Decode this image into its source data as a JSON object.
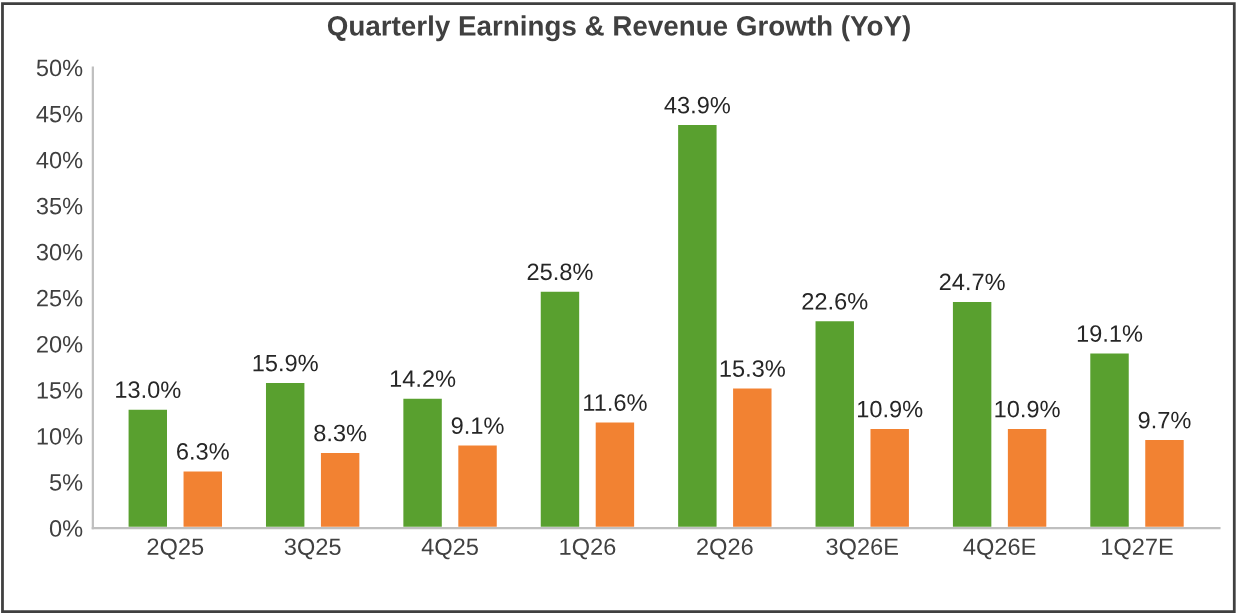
{
  "chart_data": {
    "type": "bar",
    "title": "Quarterly Earnings & Revenue Growth (YoY)",
    "categories": [
      "2Q25",
      "3Q25",
      "4Q25",
      "1Q26",
      "2Q26",
      "3Q26E",
      "4Q26E",
      "1Q27E"
    ],
    "series": [
      {
        "color": "#59a02f",
        "values": [
          13.0,
          15.9,
          14.2,
          25.8,
          43.9,
          22.6,
          24.7,
          19.1
        ],
        "value_labels": [
          "13.0%",
          "15.9%",
          "14.2%",
          "25.8%",
          "43.9%",
          "22.6%",
          "24.7%",
          "19.1%"
        ]
      },
      {
        "color": "#f28232",
        "values": [
          6.3,
          8.3,
          9.1,
          11.6,
          15.3,
          10.9,
          10.9,
          9.7
        ],
        "value_labels": [
          "6.3%",
          "8.3%",
          "9.1%",
          "11.6%",
          "15.3%",
          "10.9%",
          "10.9%",
          "9.7%"
        ]
      }
    ],
    "ylim": [
      0,
      50
    ],
    "yticks": [
      {
        "value": 0,
        "label": "0%"
      },
      {
        "value": 5,
        "label": "5%"
      },
      {
        "value": 10,
        "label": "10%"
      },
      {
        "value": 15,
        "label": "15%"
      },
      {
        "value": 20,
        "label": "20%"
      },
      {
        "value": 25,
        "label": "25%"
      },
      {
        "value": 30,
        "label": "30%"
      },
      {
        "value": 35,
        "label": "35%"
      },
      {
        "value": 40,
        "label": "40%"
      },
      {
        "value": 45,
        "label": "45%"
      },
      {
        "value": 50,
        "label": "50%"
      }
    ],
    "grid": false,
    "legend": false
  }
}
